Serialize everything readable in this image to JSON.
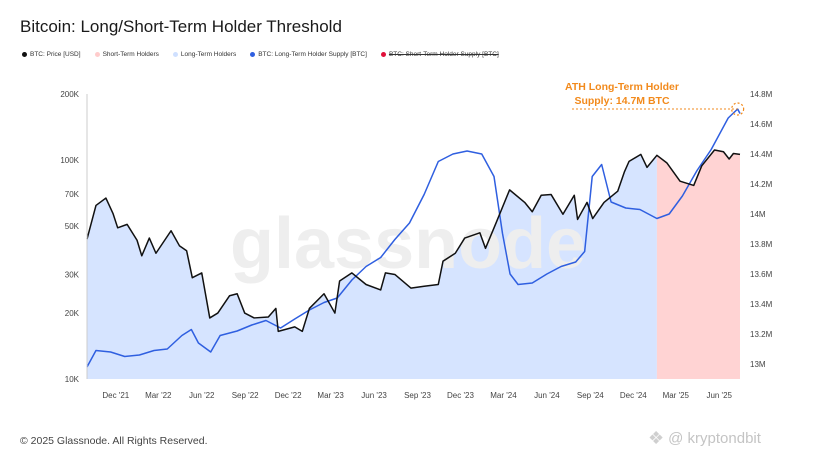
{
  "title": "Bitcoin: Long/Short-Term Holder Threshold",
  "legend": [
    {
      "label": "BTC: Price [USD]",
      "color": "#111111",
      "struck": false
    },
    {
      "label": "Short-Term Holders",
      "color": "#ffcccc",
      "struck": false
    },
    {
      "label": "Long-Term Holders",
      "color": "#cfe0ff",
      "struck": false
    },
    {
      "label": "BTC: Long-Term Holder Supply [BTC]",
      "color": "#2f5fe0",
      "struck": false
    },
    {
      "label": "BTC: Short-Term Holder Supply [BTC]",
      "color": "#e0103a",
      "struck": true
    }
  ],
  "footer": "© 2025 Glassnode. All Rights Reserved.",
  "background_watermark": "glassnode",
  "watermark": "@ kryptondbit",
  "annotation": {
    "line1": "ATH Long-Term Holder",
    "line2": "Supply: 14.7M BTC"
  },
  "colors": {
    "price": "#111111",
    "lth_supply": "#2f5fe0",
    "lth_area": "#d6e4ff",
    "sth_area": "#ffd3d3",
    "annotation": "#f28a1c"
  },
  "chart_data": {
    "type": "line",
    "title": "Bitcoin: Long/Short-Term Holder Threshold",
    "x_start": "2021-10-01",
    "x_end": "2025-07-15",
    "x_tick_labels": [
      "Dec '21",
      "Mar '22",
      "Jun '22",
      "Sep '22",
      "Dec '22",
      "Mar '23",
      "Jun '23",
      "Sep '23",
      "Dec '23",
      "Mar '24",
      "Jun '24",
      "Sep '24",
      "Dec '24",
      "Mar '25",
      "Jun '25"
    ],
    "x_tick_dates": [
      "2021-12-01",
      "2022-03-01",
      "2022-06-01",
      "2022-09-01",
      "2022-12-01",
      "2023-03-01",
      "2023-06-01",
      "2023-09-01",
      "2023-12-01",
      "2024-03-01",
      "2024-06-01",
      "2024-09-01",
      "2024-12-01",
      "2025-03-01",
      "2025-06-01"
    ],
    "y_left": {
      "scale": "log",
      "range": [
        10000,
        200000
      ],
      "tick_values": [
        10000,
        20000,
        30000,
        50000,
        70000,
        100000,
        200000
      ],
      "tick_labels": [
        "10K",
        "20K",
        "30K",
        "50K",
        "70K",
        "100K",
        "200K"
      ]
    },
    "y_right": {
      "scale": "linear",
      "range": [
        12900000,
        14800000
      ],
      "tick_values": [
        13000000,
        13200000,
        13400000,
        13600000,
        13800000,
        14000000,
        14200000,
        14400000,
        14600000,
        14800000
      ],
      "tick_labels": [
        "13M",
        "13.2M",
        "13.4M",
        "13.6M",
        "13.8M",
        "14M",
        "14.2M",
        "14.4M",
        "14.6M",
        "14.8M"
      ]
    },
    "regime_boundary": "2025-01-20",
    "series": [
      {
        "name": "BTC: Price [USD]",
        "axis": "left",
        "points": [
          [
            "2021-10-01",
            43500
          ],
          [
            "2021-10-20",
            62000
          ],
          [
            "2021-11-10",
            67000
          ],
          [
            "2021-11-25",
            57000
          ],
          [
            "2021-12-05",
            49000
          ],
          [
            "2021-12-25",
            50800
          ],
          [
            "2022-01-15",
            43000
          ],
          [
            "2022-01-25",
            36500
          ],
          [
            "2022-02-10",
            44000
          ],
          [
            "2022-02-24",
            37500
          ],
          [
            "2022-03-28",
            47500
          ],
          [
            "2022-04-15",
            40500
          ],
          [
            "2022-04-30",
            38500
          ],
          [
            "2022-05-12",
            29000
          ],
          [
            "2022-06-01",
            30500
          ],
          [
            "2022-06-18",
            19000
          ],
          [
            "2022-07-05",
            20000
          ],
          [
            "2022-07-30",
            24000
          ],
          [
            "2022-08-15",
            24500
          ],
          [
            "2022-08-31",
            20000
          ],
          [
            "2022-09-20",
            19000
          ],
          [
            "2022-10-20",
            19200
          ],
          [
            "2022-11-05",
            21000
          ],
          [
            "2022-11-10",
            16500
          ],
          [
            "2022-12-15",
            17300
          ],
          [
            "2022-12-31",
            16500
          ],
          [
            "2023-01-15",
            21000
          ],
          [
            "2023-02-15",
            24500
          ],
          [
            "2023-03-10",
            20000
          ],
          [
            "2023-03-20",
            28000
          ],
          [
            "2023-04-15",
            30500
          ],
          [
            "2023-05-15",
            27000
          ],
          [
            "2023-06-15",
            25500
          ],
          [
            "2023-06-25",
            30500
          ],
          [
            "2023-07-15",
            30000
          ],
          [
            "2023-08-18",
            26000
          ],
          [
            "2023-09-15",
            26500
          ],
          [
            "2023-10-15",
            27000
          ],
          [
            "2023-10-25",
            34500
          ],
          [
            "2023-11-20",
            37500
          ],
          [
            "2023-12-10",
            44000
          ],
          [
            "2024-01-11",
            46500
          ],
          [
            "2024-01-23",
            39500
          ],
          [
            "2024-02-15",
            52000
          ],
          [
            "2024-03-14",
            73000
          ],
          [
            "2024-04-15",
            64000
          ],
          [
            "2024-05-01",
            58000
          ],
          [
            "2024-05-20",
            69000
          ],
          [
            "2024-06-10",
            69500
          ],
          [
            "2024-07-05",
            56500
          ],
          [
            "2024-07-29",
            69000
          ],
          [
            "2024-08-05",
            53500
          ],
          [
            "2024-08-25",
            64000
          ],
          [
            "2024-09-06",
            54000
          ],
          [
            "2024-09-30",
            64000
          ],
          [
            "2024-10-29",
            72000
          ],
          [
            "2024-11-12",
            88000
          ],
          [
            "2024-11-22",
            98500
          ],
          [
            "2024-12-17",
            106000
          ],
          [
            "2024-12-30",
            92500
          ],
          [
            "2025-01-20",
            105000
          ],
          [
            "2025-02-10",
            97000
          ],
          [
            "2025-03-10",
            80000
          ],
          [
            "2025-04-08",
            76500
          ],
          [
            "2025-04-25",
            94000
          ],
          [
            "2025-05-22",
            111000
          ],
          [
            "2025-06-10",
            109000
          ],
          [
            "2025-06-22",
            101000
          ],
          [
            "2025-07-01",
            107000
          ],
          [
            "2025-07-15",
            106000
          ]
        ]
      },
      {
        "name": "BTC: Long-Term Holder Supply [BTC]",
        "axis": "right",
        "points": [
          [
            "2021-10-01",
            12980000
          ],
          [
            "2021-10-20",
            13090000
          ],
          [
            "2021-11-20",
            13080000
          ],
          [
            "2021-12-20",
            13050000
          ],
          [
            "2022-01-20",
            13060000
          ],
          [
            "2022-02-20",
            13090000
          ],
          [
            "2022-03-20",
            13100000
          ],
          [
            "2022-04-20",
            13190000
          ],
          [
            "2022-05-10",
            13230000
          ],
          [
            "2022-05-25",
            13140000
          ],
          [
            "2022-06-20",
            13080000
          ],
          [
            "2022-07-10",
            13190000
          ],
          [
            "2022-08-15",
            13220000
          ],
          [
            "2022-09-15",
            13260000
          ],
          [
            "2022-10-15",
            13290000
          ],
          [
            "2022-11-15",
            13240000
          ],
          [
            "2022-12-15",
            13300000
          ],
          [
            "2023-01-15",
            13360000
          ],
          [
            "2023-02-15",
            13410000
          ],
          [
            "2023-03-15",
            13440000
          ],
          [
            "2023-04-15",
            13560000
          ],
          [
            "2023-05-15",
            13650000
          ],
          [
            "2023-06-15",
            13710000
          ],
          [
            "2023-07-15",
            13830000
          ],
          [
            "2023-08-15",
            13940000
          ],
          [
            "2023-09-15",
            14130000
          ],
          [
            "2023-10-15",
            14350000
          ],
          [
            "2023-11-15",
            14400000
          ],
          [
            "2023-12-15",
            14420000
          ],
          [
            "2024-01-15",
            14400000
          ],
          [
            "2024-02-10",
            14250000
          ],
          [
            "2024-02-28",
            13870000
          ],
          [
            "2024-03-15",
            13600000
          ],
          [
            "2024-04-01",
            13530000
          ],
          [
            "2024-05-01",
            13540000
          ],
          [
            "2024-06-01",
            13600000
          ],
          [
            "2024-07-01",
            13650000
          ],
          [
            "2024-08-01",
            13680000
          ],
          [
            "2024-08-20",
            13750000
          ],
          [
            "2024-09-05",
            14250000
          ],
          [
            "2024-09-25",
            14330000
          ],
          [
            "2024-10-15",
            14080000
          ],
          [
            "2024-11-15",
            14040000
          ],
          [
            "2024-12-15",
            14030000
          ],
          [
            "2025-01-20",
            13970000
          ],
          [
            "2025-02-15",
            14000000
          ],
          [
            "2025-03-15",
            14120000
          ],
          [
            "2025-04-15",
            14290000
          ],
          [
            "2025-05-15",
            14430000
          ],
          [
            "2025-06-20",
            14640000
          ],
          [
            "2025-07-10",
            14700000
          ],
          [
            "2025-07-15",
            14670000
          ]
        ]
      }
    ]
  }
}
